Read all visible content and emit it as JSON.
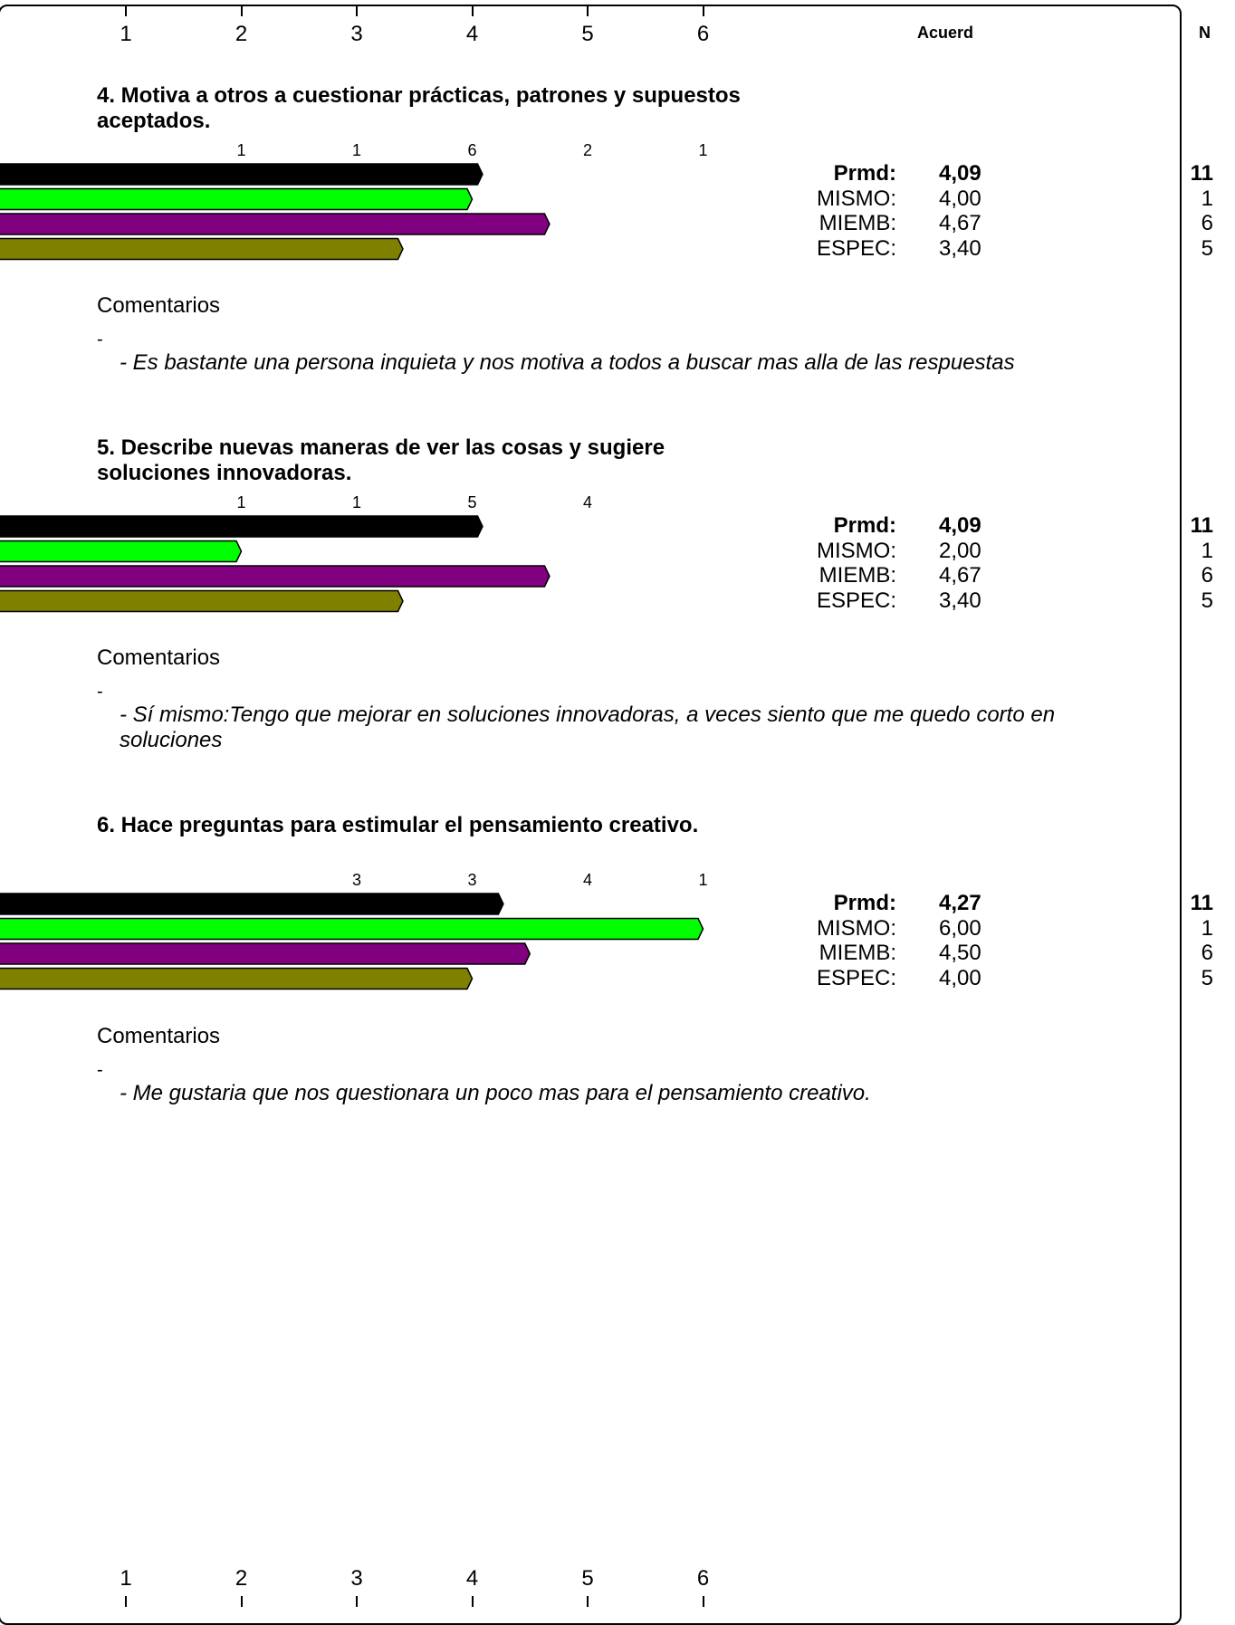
{
  "chart_data": {
    "type": "bar",
    "orientation": "horizontal",
    "axis_ticks": [
      "1",
      "2",
      "3",
      "4",
      "5",
      "6"
    ],
    "xlim": [
      0,
      6
    ],
    "header": {
      "agreement_label": "Acuerd",
      "n_label": "N"
    },
    "series": [
      {
        "name": "Prmd",
        "color": "#000000"
      },
      {
        "name": "MISMO",
        "color": "#00ff00"
      },
      {
        "name": "MIEMB",
        "color": "#800080"
      },
      {
        "name": "ESPEC",
        "color": "#808000"
      }
    ],
    "questions": [
      {
        "title": "4. Motiva a otros a cuestionar prácticas, patrones y supuestos aceptados.",
        "counts": [
          {
            "tick": 2,
            "value": "1"
          },
          {
            "tick": 3,
            "value": "1"
          },
          {
            "tick": 4,
            "value": "6"
          },
          {
            "tick": 5,
            "value": "2"
          },
          {
            "tick": 6,
            "value": "1"
          }
        ],
        "rows": [
          {
            "label": "Prmd:",
            "value": 4.09,
            "display": "4,09",
            "n": "11"
          },
          {
            "label": "MISMO:",
            "value": 4.0,
            "display": "4,00",
            "n": "1"
          },
          {
            "label": "MIEMB:",
            "value": 4.67,
            "display": "4,67",
            "n": "6"
          },
          {
            "label": "ESPEC:",
            "value": 3.4,
            "display": "3,40",
            "n": "5"
          }
        ],
        "comments_title": "Comentarios",
        "dash": "-",
        "comment": "- Es bastante una persona inquieta y nos motiva a todos a buscar mas alla de las respuestas"
      },
      {
        "title": "5. Describe nuevas maneras de ver las cosas y sugiere soluciones innovadoras.",
        "counts": [
          {
            "tick": 2,
            "value": "1"
          },
          {
            "tick": 3,
            "value": "1"
          },
          {
            "tick": 4,
            "value": "5"
          },
          {
            "tick": 5,
            "value": "4"
          }
        ],
        "rows": [
          {
            "label": "Prmd:",
            "value": 4.09,
            "display": "4,09",
            "n": "11"
          },
          {
            "label": "MISMO:",
            "value": 2.0,
            "display": "2,00",
            "n": "1"
          },
          {
            "label": "MIEMB:",
            "value": 4.67,
            "display": "4,67",
            "n": "6"
          },
          {
            "label": "ESPEC:",
            "value": 3.4,
            "display": "3,40",
            "n": "5"
          }
        ],
        "comments_title": "Comentarios",
        "dash": "-",
        "comment": "- Sí mismo:Tengo que mejorar en soluciones innovadoras, a veces siento que me quedo corto en soluciones"
      },
      {
        "title": "6. Hace preguntas para estimular el pensamiento creativo.",
        "counts": [
          {
            "tick": 3,
            "value": "3"
          },
          {
            "tick": 4,
            "value": "3"
          },
          {
            "tick": 5,
            "value": "4"
          },
          {
            "tick": 6,
            "value": "1"
          }
        ],
        "rows": [
          {
            "label": "Prmd:",
            "value": 4.27,
            "display": "4,27",
            "n": "11"
          },
          {
            "label": "MISMO:",
            "value": 6.0,
            "display": "6,00",
            "n": "1"
          },
          {
            "label": "MIEMB:",
            "value": 4.5,
            "display": "4,50",
            "n": "6"
          },
          {
            "label": "ESPEC:",
            "value": 4.0,
            "display": "4,00",
            "n": "5"
          }
        ],
        "comments_title": "Comentarios",
        "dash": "-",
        "comment": "- Me gustaria que nos questionara un poco mas para el pensamiento creativo."
      }
    ]
  }
}
